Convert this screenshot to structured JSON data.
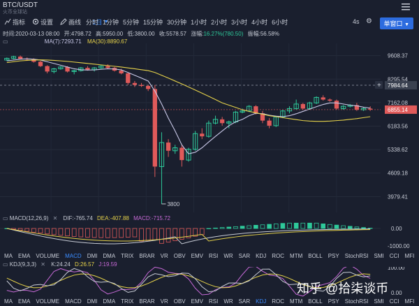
{
  "header": {
    "pair": "BTC/USDT",
    "exchange": "火币全球站"
  },
  "toolbar": {
    "indicators_label": "指标",
    "settings_label": "设置",
    "draw_label": "画线",
    "interval_selected": "1日",
    "intervals": [
      "分时",
      "1分钟",
      "5分钟",
      "15分钟",
      "30分钟",
      "1小时",
      "2小时",
      "3小时",
      "4小时",
      "6小时"
    ],
    "refresh": "4s",
    "window_mode": "单窗口"
  },
  "info": {
    "time_label": "时间:",
    "time": "2020-03-13 08:00",
    "open_label": "开:",
    "open": "4798.72",
    "high_label": "高:",
    "high": "5950.00",
    "low_label": "低:",
    "low": "3800.00",
    "close_label": "收:",
    "close": "5578.57",
    "change_label": "涨幅:",
    "change": "16.27%(780.50)",
    "amplitude_label": "振幅:",
    "amplitude": "56.58%"
  },
  "ma": {
    "ma7_label": "MA(7):",
    "ma7": "7293.71",
    "ma30_label": "MA(30):",
    "ma30": "8890.67",
    "ma7_color": "#c9c9e8",
    "ma30_color": "#e6d24a"
  },
  "price_axis": [
    "9608.37",
    "8295.54",
    "7162.08",
    "6183.56",
    "5338.62",
    "4609.18",
    "3979.41"
  ],
  "price_tags": {
    "crosshair": "7984.64",
    "current": "6855.14"
  },
  "low_marker": "3800",
  "macd": {
    "name": "MACD(12,26,9)",
    "dif_label": "DIF:",
    "dif": "-765.74",
    "dea_label": "DEA:",
    "dea": "-407.88",
    "macd_label": "MACD:",
    "macd": "-715.72",
    "axis": [
      "0.00",
      "-1000.00"
    ]
  },
  "tabs_top": [
    "MA",
    "EMA",
    "VOLUME",
    "MACD",
    "DMI",
    "DMA",
    "TRIX",
    "BRAR",
    "VR",
    "OBV",
    "EMV",
    "RSI",
    "WR",
    "SAR",
    "KDJ",
    "ROC",
    "MTM",
    "BOLL",
    "PSY",
    "StochRSI",
    "SMI",
    "CCI",
    "MFI",
    "ATR"
  ],
  "tabs_top_active": "MACD",
  "kdj": {
    "name": "KDJ(9,3,3)",
    "k_label": "K:",
    "k": "24.24",
    "d_label": "D:",
    "d": "26.57",
    "j_label": "J:",
    "j": "19.59",
    "axis": [
      "100.00",
      "0.00"
    ]
  },
  "tabs_bottom": [
    "MA",
    "EMA",
    "VOLUME",
    "MACD",
    "DMI",
    "DMA",
    "TRIX",
    "BRAR",
    "VR",
    "OBV",
    "EMV",
    "RSI",
    "WR",
    "SAR",
    "KDJ",
    "ROC",
    "MTM",
    "BOLL",
    "PSY",
    "StochRSI",
    "SMI",
    "CCI",
    "MFI",
    "ATR"
  ],
  "tabs_bottom_active": "KDJ",
  "watermark": "知乎 @拾柒谈币",
  "colors": {
    "up": "#2ec99a",
    "down": "#e05a5a",
    "accent": "#3b8cff",
    "bg": "#1a1f2e"
  },
  "chart_data": {
    "type": "candlestick",
    "ohlc": [
      [
        9350,
        9500,
        9300,
        9450
      ],
      [
        9450,
        9600,
        9400,
        9550
      ],
      [
        9550,
        9620,
        9400,
        9420
      ],
      [
        9420,
        9500,
        9300,
        9380
      ],
      [
        9380,
        9450,
        9200,
        9250
      ],
      [
        9250,
        9300,
        8950,
        9000
      ],
      [
        9000,
        9050,
        8600,
        8700
      ],
      [
        8700,
        8900,
        8600,
        8850
      ],
      [
        8850,
        9000,
        8800,
        8950
      ],
      [
        8950,
        9000,
        8650,
        8700
      ],
      [
        8700,
        8800,
        8550,
        8750
      ],
      [
        8750,
        8950,
        8700,
        8900
      ],
      [
        8900,
        9000,
        8750,
        8800
      ],
      [
        8800,
        8950,
        8700,
        8900
      ],
      [
        8900,
        9050,
        8850,
        9000
      ],
      [
        9000,
        9100,
        8850,
        8900
      ],
      [
        8900,
        8950,
        8700,
        8750
      ],
      [
        8750,
        8850,
        8550,
        8600
      ],
      [
        8600,
        8650,
        8000,
        8100
      ],
      [
        8100,
        8200,
        7900,
        8000
      ],
      [
        8000,
        8100,
        7900,
        7950
      ],
      [
        7950,
        8000,
        7700,
        7800
      ],
      [
        7800,
        8000,
        4500,
        4800
      ],
      [
        4800,
        5950,
        3800,
        5579
      ],
      [
        5579,
        5700,
        5100,
        5300
      ],
      [
        5300,
        5500,
        5200,
        5400
      ],
      [
        5400,
        5500,
        4800,
        5000
      ],
      [
        5000,
        5400,
        4950,
        5350
      ],
      [
        5350,
        6000,
        5300,
        5900
      ],
      [
        5900,
        6100,
        5700,
        5800
      ],
      [
        5800,
        6400,
        5750,
        6300
      ],
      [
        6300,
        6600,
        6250,
        6450
      ],
      [
        6450,
        6550,
        6200,
        6300
      ],
      [
        6300,
        6400,
        6100,
        6350
      ],
      [
        6350,
        6800,
        6300,
        6750
      ],
      [
        6750,
        6900,
        6700,
        6800
      ],
      [
        6800,
        7050,
        6750,
        7000
      ],
      [
        7000,
        7050,
        6650,
        6700
      ],
      [
        6700,
        6800,
        6300,
        6400
      ],
      [
        6400,
        6500,
        6100,
        6200
      ],
      [
        6200,
        6600,
        6150,
        6550
      ],
      [
        6550,
        6850,
        6500,
        6800
      ],
      [
        6800,
        7000,
        6700,
        6900
      ],
      [
        6900,
        7300,
        6850,
        7100
      ],
      [
        7100,
        7150,
        6850,
        6900
      ],
      [
        6900,
        7200,
        6850,
        7150
      ],
      [
        7150,
        7450,
        7100,
        7400
      ],
      [
        7400,
        7500,
        7250,
        7300
      ],
      [
        7300,
        7350,
        7200,
        7250
      ],
      [
        7250,
        7300,
        6850,
        6900
      ],
      [
        6900,
        7050,
        6850,
        7000
      ],
      [
        7000,
        7100,
        6950,
        7050
      ],
      [
        7050,
        7150,
        6800,
        6850
      ],
      [
        6850,
        6950,
        6800,
        6900
      ],
      [
        6900,
        7000,
        6800,
        6855
      ]
    ],
    "ma7": [
      9300,
      9350,
      9400,
      9420,
      9400,
      9350,
      9250,
      9150,
      9050,
      8950,
      8850,
      8800,
      8780,
      8790,
      8820,
      8850,
      8840,
      8790,
      8650,
      8500,
      8350,
      8200,
      7700,
      7100,
      6500,
      6000,
      5500,
      5200,
      5250,
      5400,
      5600,
      5800,
      6000,
      6200,
      6350,
      6450,
      6600,
      6700,
      6680,
      6620,
      6580,
      6560,
      6600,
      6680,
      6780,
      6880,
      6980,
      7080,
      7150,
      7150,
      7100,
      7050,
      7020,
      6960,
      6920
    ],
    "ma30": [
      9200,
      9250,
      9300,
      9330,
      9350,
      9360,
      9350,
      9330,
      9300,
      9270,
      9230,
      9190,
      9150,
      9110,
      9070,
      9030,
      8990,
      8950,
      8900,
      8850,
      8800,
      8750,
      8650,
      8500,
      8350,
      8200,
      8050,
      7900,
      7750,
      7600,
      7450,
      7300,
      7150,
      7050,
      6950,
      6850,
      6780,
      6720,
      6660,
      6600,
      6560,
      6520,
      6480,
      6440,
      6400,
      6380,
      6370,
      6370,
      6380,
      6400,
      6420,
      6450,
      6480,
      6520,
      6560
    ],
    "y_range": [
      3700,
      10200
    ]
  }
}
